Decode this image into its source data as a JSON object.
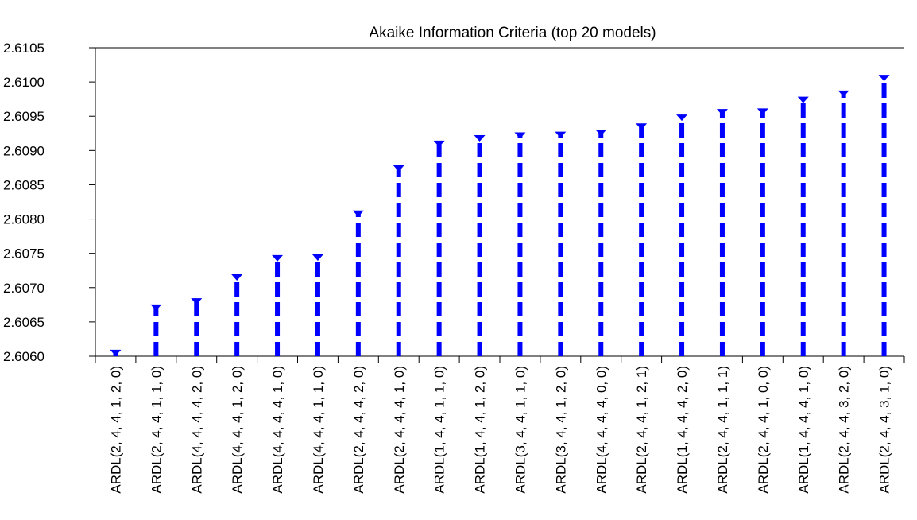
{
  "chart_data": {
    "type": "dropline",
    "title": "Akaike Information Criteria (top 20 models)",
    "categories": [
      "ARDL(2, 4, 4, 1, 2, 0)",
      "ARDL(2, 4, 4, 1, 1, 0)",
      "ARDL(4, 4, 4, 4, 2, 0)",
      "ARDL(4, 4, 4, 1, 2, 0)",
      "ARDL(4, 4, 4, 4, 1, 0)",
      "ARDL(4, 4, 4, 1, 1, 0)",
      "ARDL(2, 4, 4, 4, 2, 0)",
      "ARDL(2, 4, 4, 4, 1, 0)",
      "ARDL(1, 4, 4, 1, 1, 0)",
      "ARDL(1, 4, 4, 1, 2, 0)",
      "ARDL(3, 4, 4, 1, 1, 0)",
      "ARDL(3, 4, 4, 1, 2, 0)",
      "ARDL(4, 4, 4, 4, 0, 0)",
      "ARDL(2, 4, 4, 1, 2, 1)",
      "ARDL(1, 4, 4, 4, 2, 0)",
      "ARDL(2, 4, 4, 1, 1, 1)",
      "ARDL(2, 4, 4, 1, 0, 0)",
      "ARDL(1, 4, 4, 4, 1, 0)",
      "ARDL(2, 4, 4, 3, 2, 0)",
      "ARDL(2, 4, 4, 3, 1, 0)"
    ],
    "values": [
      2.60606,
      2.60672,
      2.60681,
      2.60716,
      2.60744,
      2.60745,
      2.60809,
      2.60875,
      2.60911,
      2.60919,
      2.60923,
      2.60924,
      2.60927,
      2.60936,
      2.60949,
      2.60957,
      2.60958,
      2.60975,
      2.60984,
      2.61007
    ],
    "color": "#0000ff",
    "ylim": [
      2.606,
      2.6105
    ],
    "yticks": [
      {
        "value": 2.606,
        "label": "2.6060"
      },
      {
        "value": 2.6065,
        "label": "2.6065"
      },
      {
        "value": 2.607,
        "label": "2.6070"
      },
      {
        "value": 2.6075,
        "label": "2.6075"
      },
      {
        "value": 2.608,
        "label": "2.6080"
      },
      {
        "value": 2.6085,
        "label": "2.6085"
      },
      {
        "value": 2.609,
        "label": "2.6090"
      },
      {
        "value": 2.6095,
        "label": "2.6095"
      },
      {
        "value": 2.61,
        "label": "2.6100"
      },
      {
        "value": 2.6105,
        "label": "2.6105"
      }
    ]
  }
}
